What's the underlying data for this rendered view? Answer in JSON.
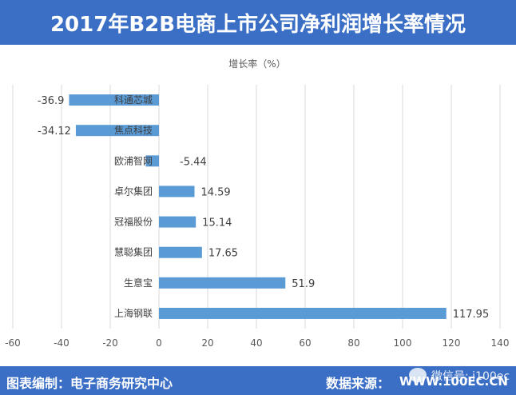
{
  "title": "2017年B2B电商上市公司净利润增长率情况",
  "footer": {
    "left": "图表编制：电子商务研究中心",
    "source_label": "数据来源：",
    "site": "WWW.100EC.CN",
    "watermark": "微信号: i100ec"
  },
  "colors": {
    "bar": "#5b9bd5",
    "header": "#3b6fc6",
    "grid": "#d9d9d9"
  },
  "chart_data": {
    "type": "bar",
    "orientation": "horizontal",
    "title": "增长率（%）",
    "xlabel": "",
    "ylabel": "",
    "xlim": [
      -60,
      140
    ],
    "xticks": [
      -60,
      -40,
      -20,
      0,
      20,
      40,
      60,
      80,
      100,
      120,
      140
    ],
    "grid": true,
    "categories": [
      "科通芯城",
      "焦点科技",
      "欧浦智网",
      "卓尔集团",
      "冠福股份",
      "慧聪集团",
      "生意宝",
      "上海钢联"
    ],
    "values": [
      -36.9,
      -34.12,
      -5.44,
      14.59,
      15.14,
      17.65,
      51.9,
      117.95
    ],
    "labels": [
      "-36.9",
      "-34.12",
      "-5.44",
      "14.59",
      "15.14",
      "17.65",
      "51.9",
      "117.95"
    ]
  }
}
